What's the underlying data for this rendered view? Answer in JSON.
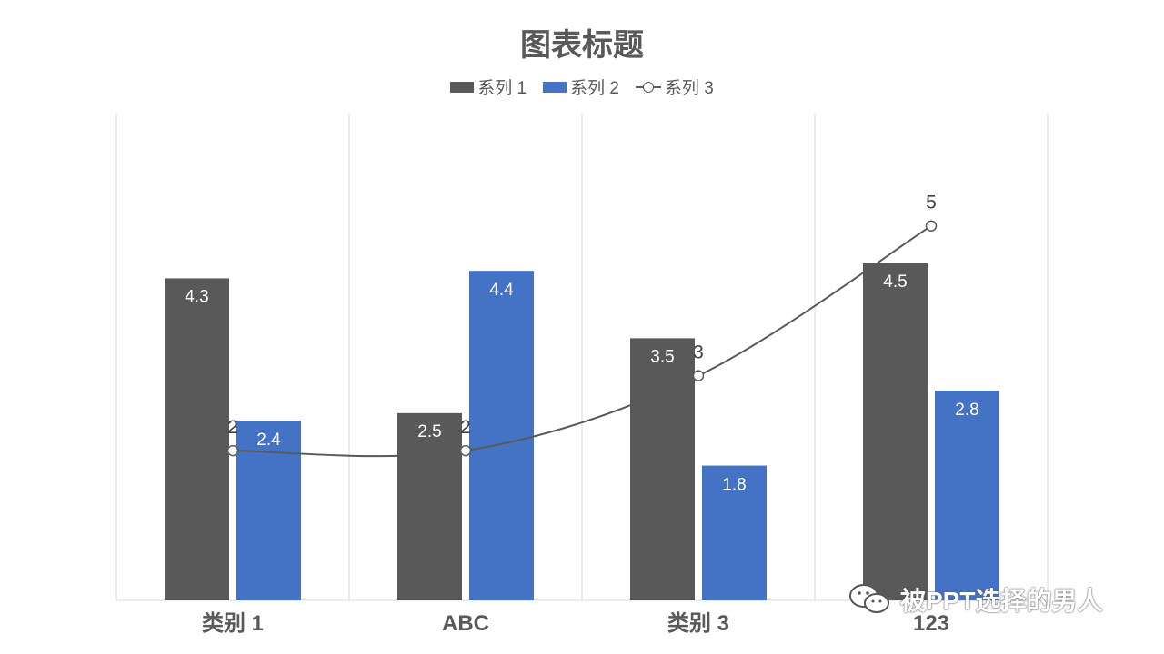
{
  "colors": {
    "series1": "#595959",
    "series2": "#4472C4",
    "series3": "#595959",
    "grid": "#D9D9D9",
    "text": "#595959"
  },
  "watermark": {
    "text": "被PPT选择的男人",
    "icon": "wechat-icon"
  },
  "chart_data": {
    "type": "bar",
    "title": "图表标题",
    "categories": [
      "类别 1",
      "ABC",
      "类别 3",
      "123"
    ],
    "series": [
      {
        "name": "系列 1",
        "type": "bar",
        "values": [
          4.3,
          2.5,
          3.5,
          4.5
        ]
      },
      {
        "name": "系列 2",
        "type": "bar",
        "values": [
          2.4,
          4.4,
          1.8,
          2.8
        ]
      },
      {
        "name": "系列 3",
        "type": "line",
        "smooth": true,
        "marker": "circle",
        "values": [
          2,
          2,
          3,
          5
        ]
      }
    ],
    "legend": "top-center",
    "grid": "vertical",
    "data_labels": true
  }
}
